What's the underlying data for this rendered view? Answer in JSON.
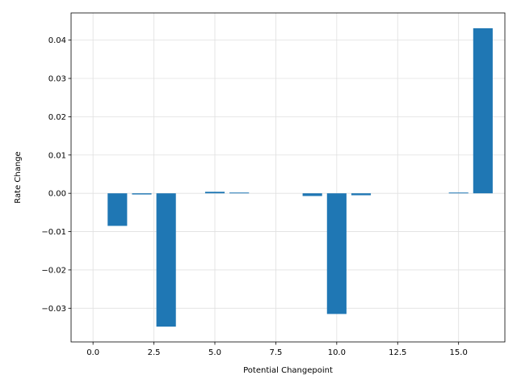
{
  "chart_data": {
    "type": "bar",
    "x": [
      0,
      1,
      2,
      3,
      4,
      5,
      6,
      7,
      8,
      9,
      10,
      11,
      12,
      13,
      14,
      15,
      16
    ],
    "values": [
      0,
      -0.0085,
      -0.0003,
      -0.0348,
      0,
      0.0004,
      0.0002,
      0,
      0,
      -0.0007,
      -0.0315,
      -0.0005,
      0,
      0,
      0,
      0.0002,
      0.0431
    ],
    "xlabel": "Potential Changepoint",
    "ylabel": "Rate Change",
    "xlim": [
      -0.9,
      16.9
    ],
    "ylim": [
      -0.0388,
      0.0471
    ],
    "x_ticks": [
      0,
      2.5,
      5,
      7.5,
      10,
      12.5,
      15
    ],
    "x_tick_labels": [
      "0.0",
      "2.5",
      "5.0",
      "7.5",
      "10.0",
      "12.5",
      "15.0"
    ],
    "y_ticks": [
      -0.03,
      -0.02,
      -0.01,
      0,
      0.01,
      0.02,
      0.03,
      0.04
    ],
    "y_tick_labels": [
      "−0.03",
      "−0.02",
      "−0.01",
      "0.00",
      "0.01",
      "0.02",
      "0.03",
      "0.04"
    ],
    "grid": true,
    "bar_color": "#1f77b4",
    "grid_color": "#e0e0e0"
  }
}
